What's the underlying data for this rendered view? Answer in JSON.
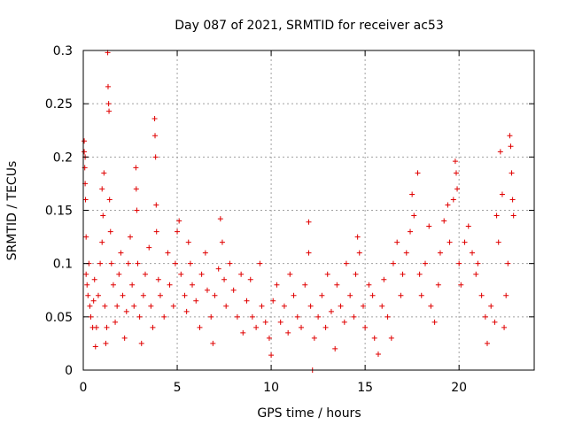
{
  "chart_data": {
    "type": "scatter",
    "title": "Day 087 of 2021, SRMTID for receiver ac53",
    "xlabel": "GPS time / hours",
    "ylabel": "SRMTID / TECUs",
    "xlim": [
      0,
      24
    ],
    "ylim": [
      0,
      0.3
    ],
    "xticks": [
      0,
      5,
      10,
      15,
      20
    ],
    "xtick_labels": [
      "0",
      "5",
      "10",
      "15",
      "20"
    ],
    "yticks": [
      0,
      0.05,
      0.1,
      0.15,
      0.2,
      0.25,
      0.3
    ],
    "ytick_labels": [
      "0",
      "0.05",
      "0.1",
      "0.15",
      "0.2",
      "0.25",
      "0.3"
    ],
    "grid": true,
    "marker": "+",
    "color": "#e00000",
    "legend": "none",
    "series": [
      {
        "name": "SRMTID",
        "points": [
          [
            0.05,
            0.215
          ],
          [
            0.05,
            0.205
          ],
          [
            0.08,
            0.19
          ],
          [
            0.1,
            0.2
          ],
          [
            0.1,
            0.175
          ],
          [
            0.12,
            0.16
          ],
          [
            0.15,
            0.125
          ],
          [
            0.15,
            0.09
          ],
          [
            0.2,
            0.08
          ],
          [
            0.25,
            0.07
          ],
          [
            0.3,
            0.1
          ],
          [
            0.35,
            0.06
          ],
          [
            0.4,
            0.05
          ],
          [
            0.5,
            0.04
          ],
          [
            0.55,
            0.065
          ],
          [
            0.6,
            0.085
          ],
          [
            0.65,
            0.022
          ],
          [
            0.7,
            0.04
          ],
          [
            0.8,
            0.07
          ],
          [
            0.9,
            0.1
          ],
          [
            1.0,
            0.12
          ],
          [
            1.0,
            0.17
          ],
          [
            1.05,
            0.145
          ],
          [
            1.1,
            0.185
          ],
          [
            1.15,
            0.06
          ],
          [
            1.2,
            0.025
          ],
          [
            1.25,
            0.04
          ],
          [
            1.3,
            0.298
          ],
          [
            1.32,
            0.266
          ],
          [
            1.35,
            0.25
          ],
          [
            1.37,
            0.243
          ],
          [
            1.4,
            0.16
          ],
          [
            1.45,
            0.13
          ],
          [
            1.5,
            0.1
          ],
          [
            1.6,
            0.08
          ],
          [
            1.7,
            0.045
          ],
          [
            1.8,
            0.06
          ],
          [
            1.9,
            0.09
          ],
          [
            2.0,
            0.11
          ],
          [
            2.1,
            0.07
          ],
          [
            2.2,
            0.03
          ],
          [
            2.3,
            0.055
          ],
          [
            2.4,
            0.1
          ],
          [
            2.5,
            0.125
          ],
          [
            2.6,
            0.08
          ],
          [
            2.7,
            0.06
          ],
          [
            2.8,
            0.19
          ],
          [
            2.82,
            0.17
          ],
          [
            2.85,
            0.15
          ],
          [
            2.9,
            0.1
          ],
          [
            3.0,
            0.05
          ],
          [
            3.1,
            0.025
          ],
          [
            3.2,
            0.07
          ],
          [
            3.3,
            0.09
          ],
          [
            3.5,
            0.115
          ],
          [
            3.6,
            0.06
          ],
          [
            3.7,
            0.04
          ],
          [
            3.8,
            0.236
          ],
          [
            3.82,
            0.22
          ],
          [
            3.85,
            0.2
          ],
          [
            3.88,
            0.155
          ],
          [
            3.9,
            0.13
          ],
          [
            4.0,
            0.085
          ],
          [
            4.1,
            0.07
          ],
          [
            4.3,
            0.05
          ],
          [
            4.5,
            0.11
          ],
          [
            4.6,
            0.08
          ],
          [
            4.8,
            0.06
          ],
          [
            4.9,
            0.1
          ],
          [
            5.0,
            0.13
          ],
          [
            5.1,
            0.14
          ],
          [
            5.2,
            0.09
          ],
          [
            5.4,
            0.07
          ],
          [
            5.5,
            0.055
          ],
          [
            5.6,
            0.12
          ],
          [
            5.7,
            0.1
          ],
          [
            5.8,
            0.08
          ],
          [
            6.0,
            0.065
          ],
          [
            6.2,
            0.04
          ],
          [
            6.3,
            0.09
          ],
          [
            6.5,
            0.11
          ],
          [
            6.6,
            0.075
          ],
          [
            6.8,
            0.05
          ],
          [
            6.9,
            0.025
          ],
          [
            7.0,
            0.07
          ],
          [
            7.2,
            0.095
          ],
          [
            7.3,
            0.142
          ],
          [
            7.4,
            0.12
          ],
          [
            7.5,
            0.085
          ],
          [
            7.6,
            0.06
          ],
          [
            7.8,
            0.1
          ],
          [
            8.0,
            0.075
          ],
          [
            8.2,
            0.05
          ],
          [
            8.4,
            0.09
          ],
          [
            8.5,
            0.035
          ],
          [
            8.7,
            0.065
          ],
          [
            8.9,
            0.085
          ],
          [
            9.0,
            0.05
          ],
          [
            9.2,
            0.04
          ],
          [
            9.4,
            0.1
          ],
          [
            9.5,
            0.06
          ],
          [
            9.7,
            0.045
          ],
          [
            9.9,
            0.03
          ],
          [
            10.0,
            0.014
          ],
          [
            10.1,
            0.065
          ],
          [
            10.3,
            0.08
          ],
          [
            10.5,
            0.045
          ],
          [
            10.7,
            0.06
          ],
          [
            10.9,
            0.035
          ],
          [
            11.0,
            0.09
          ],
          [
            11.2,
            0.07
          ],
          [
            11.4,
            0.05
          ],
          [
            11.6,
            0.04
          ],
          [
            11.8,
            0.08
          ],
          [
            12.0,
            0.11
          ],
          [
            12.0,
            0.139
          ],
          [
            12.1,
            0.06
          ],
          [
            12.3,
            0.03
          ],
          [
            12.5,
            0.05
          ],
          [
            12.7,
            0.07
          ],
          [
            12.9,
            0.04
          ],
          [
            13.0,
            0.09
          ],
          [
            13.2,
            0.055
          ],
          [
            13.4,
            0.02
          ],
          [
            13.5,
            0.08
          ],
          [
            13.7,
            0.06
          ],
          [
            13.9,
            0.045
          ],
          [
            14.0,
            0.1
          ],
          [
            14.2,
            0.07
          ],
          [
            14.4,
            0.05
          ],
          [
            14.5,
            0.09
          ],
          [
            14.6,
            0.125
          ],
          [
            14.7,
            0.11
          ],
          [
            14.9,
            0.06
          ],
          [
            15.0,
            0.04
          ],
          [
            15.2,
            0.08
          ],
          [
            15.4,
            0.07
          ],
          [
            15.5,
            0.03
          ],
          [
            15.7,
            0.015
          ],
          [
            15.9,
            0.06
          ],
          [
            16.0,
            0.085
          ],
          [
            16.2,
            0.05
          ],
          [
            16.4,
            0.03
          ],
          [
            16.5,
            0.1
          ],
          [
            16.7,
            0.12
          ],
          [
            16.9,
            0.07
          ],
          [
            17.0,
            0.09
          ],
          [
            17.2,
            0.11
          ],
          [
            17.4,
            0.13
          ],
          [
            17.5,
            0.165
          ],
          [
            17.6,
            0.145
          ],
          [
            17.8,
            0.185
          ],
          [
            17.9,
            0.09
          ],
          [
            18.0,
            0.07
          ],
          [
            18.2,
            0.1
          ],
          [
            18.4,
            0.135
          ],
          [
            18.5,
            0.06
          ],
          [
            18.7,
            0.045
          ],
          [
            18.9,
            0.08
          ],
          [
            19.0,
            0.11
          ],
          [
            19.2,
            0.14
          ],
          [
            19.4,
            0.155
          ],
          [
            19.5,
            0.12
          ],
          [
            19.7,
            0.16
          ],
          [
            19.8,
            0.196
          ],
          [
            19.85,
            0.185
          ],
          [
            19.9,
            0.17
          ],
          [
            20.0,
            0.1
          ],
          [
            20.1,
            0.08
          ],
          [
            20.3,
            0.12
          ],
          [
            20.5,
            0.135
          ],
          [
            20.7,
            0.11
          ],
          [
            20.9,
            0.09
          ],
          [
            21.0,
            0.1
          ],
          [
            21.2,
            0.07
          ],
          [
            21.4,
            0.05
          ],
          [
            21.5,
            0.025
          ],
          [
            21.7,
            0.06
          ],
          [
            21.9,
            0.045
          ],
          [
            22.0,
            0.145
          ],
          [
            22.1,
            0.12
          ],
          [
            22.2,
            0.205
          ],
          [
            22.3,
            0.165
          ],
          [
            22.4,
            0.04
          ],
          [
            22.5,
            0.07
          ],
          [
            22.6,
            0.1
          ],
          [
            22.7,
            0.22
          ],
          [
            22.75,
            0.21
          ],
          [
            22.8,
            0.185
          ],
          [
            22.85,
            0.16
          ],
          [
            22.9,
            0.145
          ],
          [
            12.2,
            0.0
          ]
        ]
      }
    ]
  }
}
